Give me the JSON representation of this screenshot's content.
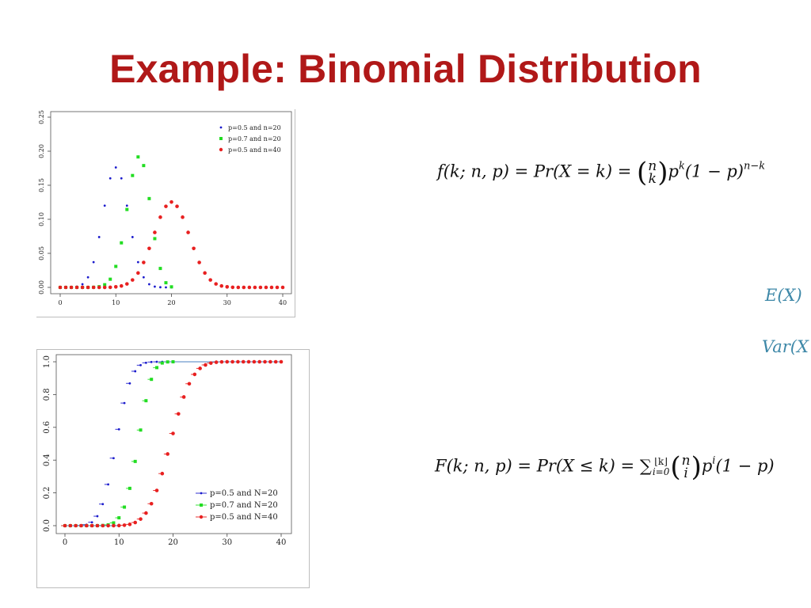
{
  "slide": {
    "title": "Example: Binomial Distribution"
  },
  "formulas": {
    "pmf": {
      "lhs": "f(k; n, p) = Pr(X = k) = ",
      "binom_top": "n",
      "binom_bottom": "k",
      "rhs": "p",
      "rhs_sup": "k",
      "rhs_tail": "(1 − p)",
      "tail_sup": "n−k"
    },
    "expectation": "E(X)",
    "variance": "Var(X",
    "cdf": {
      "lhs": "F(k; n, p) = Pr(X ≤ k) = ∑",
      "sum_upper": "⌊k⌋",
      "sum_lower": "i=0",
      "binom_top": "n",
      "binom_bottom": "i",
      "rhs": "p",
      "rhs_sup": "i",
      "rhs_tail": "(1 − p)"
    }
  },
  "chart_data": [
    {
      "type": "scatter",
      "title": "",
      "xlabel": "",
      "ylabel": "",
      "xlim": [
        0,
        40
      ],
      "ylim": [
        0,
        0.25
      ],
      "xticks": [
        "0",
        "10",
        "20",
        "30",
        "40"
      ],
      "yticks": [
        "0.00",
        "0.05",
        "0.10",
        "0.15",
        "0.20",
        "0.25"
      ],
      "legend_position": "top-right",
      "series": [
        {
          "name": "p=0.5 and n=20",
          "color": "#1a1acc",
          "marker": "small-dot",
          "x": [
            0,
            1,
            2,
            3,
            4,
            5,
            6,
            7,
            8,
            9,
            10,
            11,
            12,
            13,
            14,
            15,
            16,
            17,
            18,
            19,
            20
          ],
          "y": [
            0.0,
            0.0,
            0.0002,
            0.0011,
            0.0046,
            0.0148,
            0.037,
            0.0739,
            0.1201,
            0.1602,
            0.1762,
            0.1602,
            0.1201,
            0.0739,
            0.037,
            0.0148,
            0.0046,
            0.0011,
            0.0002,
            0.0,
            0.0
          ]
        },
        {
          "name": "p=0.7 and n=20",
          "color": "#22dd22",
          "marker": "square",
          "x": [
            0,
            1,
            2,
            3,
            4,
            5,
            6,
            7,
            8,
            9,
            10,
            11,
            12,
            13,
            14,
            15,
            16,
            17,
            18,
            19,
            20
          ],
          "y": [
            0.0,
            0.0,
            0.0,
            0.0,
            0.0,
            0.0,
            0.0002,
            0.001,
            0.0039,
            0.012,
            0.0308,
            0.0654,
            0.1144,
            0.1643,
            0.1916,
            0.1789,
            0.1304,
            0.0716,
            0.0278,
            0.0068,
            0.0008
          ]
        },
        {
          "name": "p=0.5 and n=40",
          "color": "#e82020",
          "marker": "circle",
          "x": [
            0,
            1,
            2,
            3,
            4,
            5,
            6,
            7,
            8,
            9,
            10,
            11,
            12,
            13,
            14,
            15,
            16,
            17,
            18,
            19,
            20,
            21,
            22,
            23,
            24,
            25,
            26,
            27,
            28,
            29,
            30,
            31,
            32,
            33,
            34,
            35,
            36,
            37,
            38,
            39,
            40
          ],
          "y": [
            0,
            0,
            0,
            0,
            0,
            0,
            0,
            0,
            0,
            0.0001,
            0.0008,
            0.0021,
            0.0051,
            0.0109,
            0.0211,
            0.0366,
            0.0572,
            0.0807,
            0.1031,
            0.119,
            0.1254,
            0.119,
            0.1031,
            0.0807,
            0.0572,
            0.0366,
            0.0211,
            0.0109,
            0.0051,
            0.0021,
            0.0008,
            0.0001,
            0,
            0,
            0,
            0,
            0,
            0,
            0,
            0,
            0
          ]
        }
      ]
    },
    {
      "type": "scatter",
      "title": "",
      "xlabel": "",
      "ylabel": "",
      "xlim": [
        0,
        40
      ],
      "ylim": [
        0,
        1
      ],
      "xticks": [
        "0",
        "10",
        "20",
        "30",
        "40"
      ],
      "yticks": [
        "0.0",
        "0.2",
        "0.4",
        "0.6",
        "0.8",
        "1.0"
      ],
      "legend_position": "bottom-right",
      "series": [
        {
          "name": "p=0.5 and N=20",
          "color": "#1a1acc",
          "marker": "small-dot",
          "x": [
            0,
            1,
            2,
            3,
            4,
            5,
            6,
            7,
            8,
            9,
            10,
            11,
            12,
            13,
            14,
            15,
            16,
            17,
            18,
            19,
            20
          ],
          "y": [
            0,
            0,
            0.0002,
            0.0013,
            0.0059,
            0.0207,
            0.0577,
            0.1316,
            0.2517,
            0.4119,
            0.5881,
            0.7483,
            0.8684,
            0.9423,
            0.9793,
            0.9941,
            0.9987,
            0.9998,
            1,
            1,
            1
          ]
        },
        {
          "name": "p=0.7 and N=20",
          "color": "#22dd22",
          "marker": "square",
          "x": [
            0,
            1,
            2,
            3,
            4,
            5,
            6,
            7,
            8,
            9,
            10,
            11,
            12,
            13,
            14,
            15,
            16,
            17,
            18,
            19,
            20
          ],
          "y": [
            0,
            0,
            0,
            0,
            0,
            0,
            0.0003,
            0.0013,
            0.0051,
            0.0171,
            0.048,
            0.1133,
            0.2277,
            0.392,
            0.5836,
            0.7625,
            0.8929,
            0.9645,
            0.9924,
            0.9992,
            1
          ]
        },
        {
          "name": "p=0.5 and N=40",
          "color": "#e82020",
          "marker": "circle",
          "x": [
            0,
            1,
            2,
            3,
            4,
            5,
            6,
            7,
            8,
            9,
            10,
            11,
            12,
            13,
            14,
            15,
            16,
            17,
            18,
            19,
            20,
            21,
            22,
            23,
            24,
            25,
            26,
            27,
            28,
            29,
            30,
            31,
            32,
            33,
            34,
            35,
            36,
            37,
            38,
            39,
            40
          ],
          "y": [
            0,
            0,
            0,
            0,
            0,
            0,
            0,
            0,
            0,
            0.0001,
            0.0008,
            0.0029,
            0.008,
            0.0192,
            0.0403,
            0.0769,
            0.1341,
            0.2148,
            0.3179,
            0.4373,
            0.5627,
            0.6821,
            0.7852,
            0.8659,
            0.9231,
            0.9597,
            0.9808,
            0.992,
            0.9971,
            0.9992,
            0.9998,
            1,
            1,
            1,
            1,
            1,
            1,
            1,
            1,
            1,
            1
          ]
        }
      ]
    }
  ]
}
